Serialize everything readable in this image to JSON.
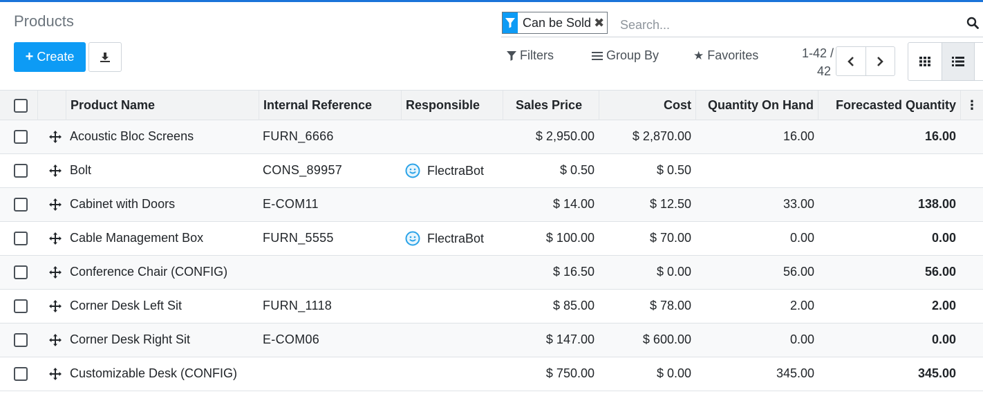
{
  "header": {
    "title": "Products",
    "create_label": "Create"
  },
  "search": {
    "facet_label": "Can be Sold",
    "placeholder": "Search..."
  },
  "toolbar": {
    "filters_label": "Filters",
    "group_by_label": "Group By",
    "favorites_label": "Favorites"
  },
  "pager": {
    "range": "1-42 /",
    "total": "42"
  },
  "columns": [
    "Product Name",
    "Internal Reference",
    "Responsible",
    "Sales Price",
    "Cost",
    "Quantity On Hand",
    "Forecasted Quantity"
  ],
  "rows": [
    {
      "name": "Acoustic Bloc Screens",
      "ref": "FURN_6666",
      "responsible": "",
      "price": "$ 2,950.00",
      "cost": "$ 2,870.00",
      "qty": "16.00",
      "forecast": "16.00"
    },
    {
      "name": "Bolt",
      "ref": "CONS_89957",
      "responsible": "FlectraBot",
      "price": "$ 0.50",
      "cost": "$ 0.50",
      "qty": "",
      "forecast": ""
    },
    {
      "name": "Cabinet with Doors",
      "ref": "E-COM11",
      "responsible": "",
      "price": "$ 14.00",
      "cost": "$ 12.50",
      "qty": "33.00",
      "forecast": "138.00"
    },
    {
      "name": "Cable Management Box",
      "ref": "FURN_5555",
      "responsible": "FlectraBot",
      "price": "$ 100.00",
      "cost": "$ 70.00",
      "qty": "0.00",
      "forecast": "0.00"
    },
    {
      "name": "Conference Chair (CONFIG)",
      "ref": "",
      "responsible": "",
      "price": "$ 16.50",
      "cost": "$ 0.00",
      "qty": "56.00",
      "forecast": "56.00"
    },
    {
      "name": "Corner Desk Left Sit",
      "ref": "FURN_1118",
      "responsible": "",
      "price": "$ 85.00",
      "cost": "$ 78.00",
      "qty": "2.00",
      "forecast": "2.00"
    },
    {
      "name": "Corner Desk Right Sit",
      "ref": "E-COM06",
      "responsible": "",
      "price": "$ 147.00",
      "cost": "$ 600.00",
      "qty": "0.00",
      "forecast": "0.00"
    },
    {
      "name": "Customizable Desk (CONFIG)",
      "ref": "",
      "responsible": "",
      "price": "$ 750.00",
      "cost": "$ 0.00",
      "qty": "345.00",
      "forecast": "345.00"
    }
  ],
  "icons": {
    "filter_facet": "filter-icon",
    "remove": "close-icon",
    "search": "search-icon",
    "download": "download-icon",
    "row_handle": "move-handle-icon",
    "avatar": "smiley-avatar-icon",
    "kanban_view": "grid-view-icon",
    "list_view": "list-view-icon"
  },
  "colors": {
    "primary": "#0d9bf5",
    "top_bar": "#1a73d9",
    "avatar": "#2aa3e8"
  }
}
